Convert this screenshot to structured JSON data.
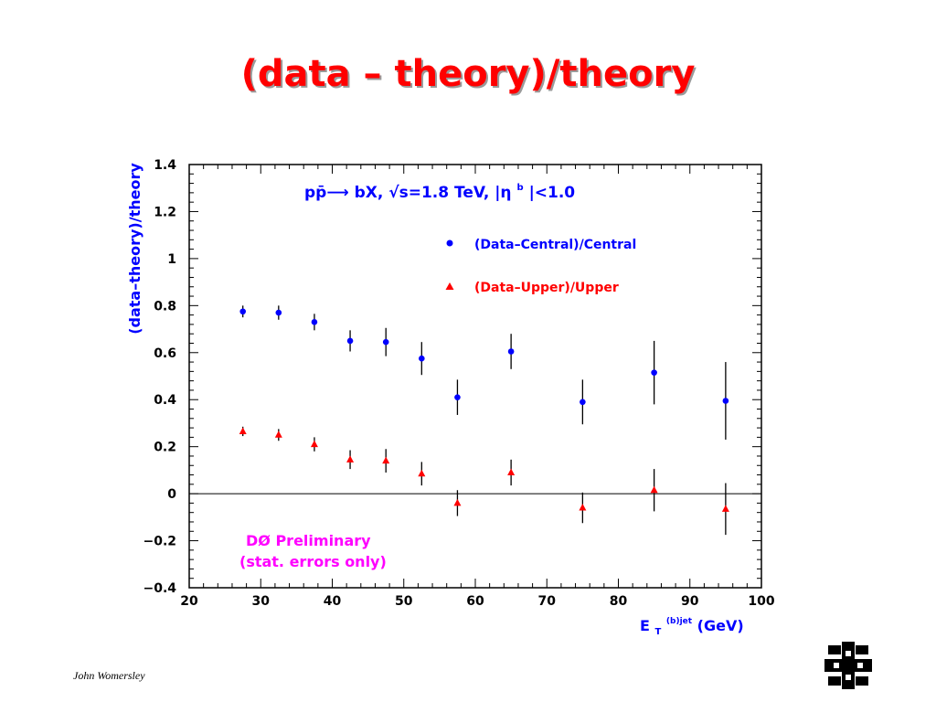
{
  "slide": {
    "title": "(data – theory)/theory",
    "author": "John Womersley"
  },
  "logo": {
    "icon": "fermilab-logo-icon",
    "color": "#000000"
  },
  "chart_data": {
    "type": "scatter",
    "title": "",
    "ylabel": "(data–theory)/theory",
    "xlabel_main": "E",
    "xlabel_sub": "T",
    "xlabel_sup": "(b)jet",
    "xlabel_units": " (GeV)",
    "xlim": [
      20,
      100
    ],
    "ylim": [
      -0.4,
      1.4
    ],
    "xticks": [
      20,
      30,
      40,
      50,
      60,
      70,
      80,
      90,
      100
    ],
    "xtick_labels": [
      "20",
      "30",
      "40",
      "50",
      "60",
      "70",
      "80",
      "90",
      "100"
    ],
    "yticks": [
      -0.4,
      -0.2,
      0,
      0.2,
      0.4,
      0.6,
      0.8,
      1,
      1.2,
      1.4
    ],
    "ytick_labels": [
      "−0.4",
      "−0.2",
      "0",
      "0.2",
      "0.4",
      "0.6",
      "0.8",
      "1",
      "1.2",
      "1.4"
    ],
    "zero_line": 0,
    "annotation_process": "pp̄⟶ bX,  √s=1.8 TeV,  |η",
    "annotation_process_tail": "|<1.0",
    "annotation_process_sup": "b",
    "annotation_preliminary": [
      "DØ Preliminary",
      "(stat. errors only)"
    ],
    "legend_position": "top-right",
    "series": [
      {
        "name": "(Data–Central)/Central",
        "marker": "circle",
        "color": "#0000ff",
        "x": [
          27.5,
          32.5,
          37.5,
          42.5,
          47.5,
          52.5,
          57.5,
          65,
          75,
          85,
          95
        ],
        "y": [
          0.775,
          0.77,
          0.73,
          0.65,
          0.645,
          0.575,
          0.41,
          0.605,
          0.39,
          0.515,
          0.395
        ],
        "err": [
          0.025,
          0.03,
          0.035,
          0.045,
          0.06,
          0.07,
          0.075,
          0.075,
          0.095,
          0.135,
          0.165
        ]
      },
      {
        "name": "(Data–Upper)/Upper",
        "marker": "triangle",
        "color": "#ff0000",
        "x": [
          27.5,
          32.5,
          37.5,
          42.5,
          47.5,
          52.5,
          57.5,
          65,
          75,
          85,
          95
        ],
        "y": [
          0.265,
          0.25,
          0.21,
          0.145,
          0.14,
          0.085,
          -0.04,
          0.09,
          -0.06,
          0.015,
          -0.065
        ],
        "err": [
          0.02,
          0.025,
          0.03,
          0.04,
          0.05,
          0.05,
          0.055,
          0.055,
          0.065,
          0.09,
          0.11
        ]
      }
    ]
  }
}
